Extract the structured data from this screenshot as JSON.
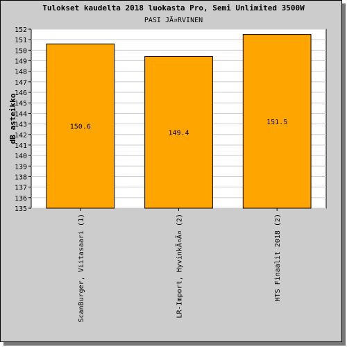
{
  "chart_data": {
    "type": "bar",
    "title": "Tulokset kaudelta 2018 luokasta Pro, Semi Unlimited 3500W",
    "subtitle": "PASI JÃ¤RVINEN",
    "xlabel": "",
    "ylabel": "dB asteikko",
    "ylim": [
      135,
      152
    ],
    "yticks": [
      135,
      136,
      137,
      138,
      139,
      140,
      141,
      142,
      143,
      144,
      145,
      146,
      147,
      148,
      149,
      150,
      151,
      152
    ],
    "categories": [
      "ScanBurger, Viitasaari (1)",
      "LR-Import, HyvinkÃ¤Ã¤ (2)",
      "HTS Finaalit 2018 (2)"
    ],
    "values": [
      150.6,
      149.4,
      151.5
    ],
    "value_labels": [
      "150.6",
      "149.4",
      "151.5"
    ],
    "grid": true,
    "legend": "none",
    "colors": {
      "bar": "#FFA500",
      "bar_stroke": "#000000",
      "background": "#CCCCCC",
      "plot": "#FFFFFF",
      "grid": "#CCCCCC"
    }
  }
}
